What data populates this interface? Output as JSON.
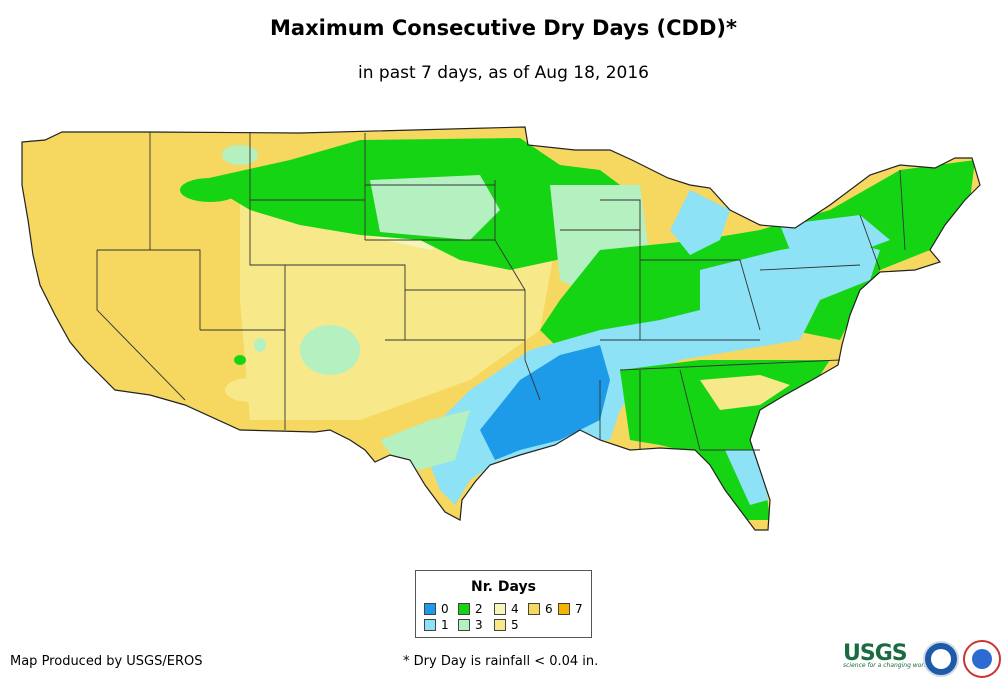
{
  "title": "Maximum Consecutive Dry Days (CDD)*",
  "subtitle": "in past 7 days, as of Aug 18, 2016",
  "legend": {
    "title": "Nr. Days",
    "items": [
      {
        "label": "0",
        "color": "#1e9be8"
      },
      {
        "label": "1",
        "color": "#8ee2f5"
      },
      {
        "label": "2",
        "color": "#14d414"
      },
      {
        "label": "3",
        "color": "#b4f0c0"
      },
      {
        "label": "4",
        "color": "#f5f5b9"
      },
      {
        "label": "5",
        "color": "#f7e98a"
      },
      {
        "label": "6",
        "color": "#f6d760"
      },
      {
        "label": "7",
        "color": "#f5b400"
      }
    ]
  },
  "credit": "Map Produced by USGS/EROS",
  "footnote": "* Dry Day is rainfall < 0.04 in.",
  "logos": {
    "usgs": "USGS",
    "usgs_tagline": "science for a changing world",
    "noaa": "noaa-logo",
    "nws": "nws-logo"
  }
}
